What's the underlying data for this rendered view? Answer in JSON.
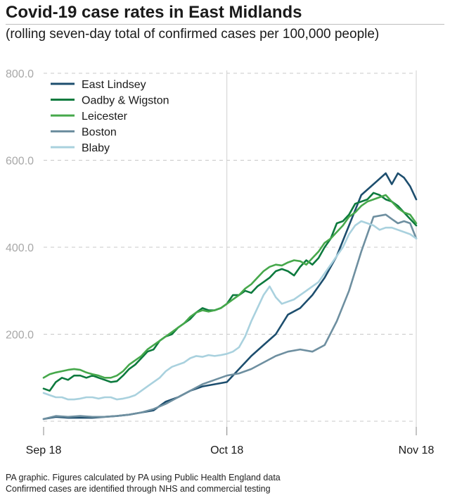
{
  "chart_data": {
    "type": "line",
    "title": "Covid-19 case rates in East Midlands",
    "subtitle": "(rolling seven-day total of confirmed cases per 100,000 people)",
    "ylim": [
      0,
      800
    ],
    "xlim": [
      0,
      61
    ],
    "y_ticks": [
      {
        "value": 200,
        "label": "200.0"
      },
      {
        "value": 400,
        "label": "400.0"
      },
      {
        "value": 600,
        "label": "600.0"
      },
      {
        "value": 800,
        "label": "800.0"
      }
    ],
    "x_ticks": [
      {
        "value": 0,
        "label": "Sep 18"
      },
      {
        "value": 30,
        "label": "Oct 18"
      },
      {
        "value": 61,
        "label": "Nov 18"
      }
    ],
    "grid": true,
    "legend_position": "top-left",
    "series": [
      {
        "name": "East Lindsey",
        "color": "#1d4e6e",
        "x": [
          0,
          2,
          4,
          6,
          8,
          10,
          12,
          14,
          16,
          18,
          20,
          22,
          24,
          26,
          28,
          30,
          32,
          34,
          36,
          38,
          40,
          42,
          44,
          46,
          48,
          50,
          52,
          54,
          56,
          57,
          58,
          59,
          60,
          61
        ],
        "values": [
          5,
          10,
          8,
          8,
          8,
          10,
          12,
          15,
          20,
          25,
          45,
          55,
          70,
          80,
          85,
          90,
          120,
          150,
          175,
          200,
          245,
          260,
          290,
          330,
          380,
          450,
          520,
          545,
          570,
          545,
          570,
          560,
          540,
          510
        ]
      },
      {
        "name": "Oadby & Wigston",
        "color": "#0d7a3e",
        "x": [
          0,
          1,
          2,
          3,
          4,
          5,
          6,
          7,
          8,
          9,
          10,
          11,
          12,
          13,
          14,
          15,
          16,
          17,
          18,
          19,
          20,
          21,
          22,
          23,
          24,
          25,
          26,
          27,
          28,
          29,
          30,
          31,
          32,
          33,
          34,
          35,
          36,
          37,
          38,
          39,
          40,
          41,
          42,
          43,
          44,
          45,
          46,
          47,
          48,
          49,
          50,
          51,
          52,
          53,
          54,
          55,
          56,
          57,
          58,
          59,
          60,
          61
        ],
        "values": [
          75,
          70,
          90,
          100,
          95,
          105,
          105,
          100,
          105,
          100,
          95,
          90,
          92,
          105,
          120,
          130,
          145,
          160,
          165,
          185,
          195,
          200,
          215,
          225,
          235,
          250,
          260,
          255,
          255,
          260,
          270,
          290,
          290,
          300,
          295,
          310,
          320,
          330,
          345,
          350,
          345,
          335,
          355,
          370,
          360,
          375,
          400,
          420,
          455,
          460,
          475,
          500,
          505,
          510,
          525,
          520,
          510,
          505,
          495,
          480,
          465,
          450
        ]
      },
      {
        "name": "Leicester",
        "color": "#46a84b",
        "x": [
          0,
          1,
          2,
          3,
          4,
          5,
          6,
          7,
          8,
          9,
          10,
          11,
          12,
          13,
          14,
          15,
          16,
          17,
          18,
          19,
          20,
          21,
          22,
          23,
          24,
          25,
          26,
          27,
          28,
          29,
          30,
          31,
          32,
          33,
          34,
          35,
          36,
          37,
          38,
          39,
          40,
          41,
          42,
          43,
          44,
          45,
          46,
          47,
          48,
          49,
          50,
          51,
          52,
          53,
          54,
          55,
          56,
          57,
          58,
          59,
          60,
          61
        ],
        "values": [
          100,
          108,
          112,
          115,
          118,
          120,
          118,
          112,
          108,
          105,
          100,
          100,
          105,
          115,
          130,
          140,
          150,
          165,
          175,
          185,
          195,
          205,
          215,
          225,
          240,
          250,
          255,
          252,
          255,
          260,
          270,
          280,
          290,
          305,
          315,
          330,
          345,
          355,
          360,
          358,
          365,
          370,
          368,
          360,
          375,
          390,
          410,
          420,
          435,
          450,
          470,
          480,
          495,
          505,
          510,
          515,
          520,
          505,
          490,
          480,
          475,
          455
        ]
      },
      {
        "name": "Boston",
        "color": "#6e8fa0",
        "x": [
          0,
          2,
          4,
          6,
          8,
          10,
          12,
          14,
          16,
          18,
          20,
          22,
          24,
          26,
          28,
          30,
          32,
          34,
          36,
          38,
          40,
          42,
          44,
          46,
          48,
          50,
          52,
          54,
          56,
          57,
          58,
          59,
          60,
          61
        ],
        "values": [
          5,
          12,
          10,
          12,
          10,
          10,
          12,
          15,
          20,
          28,
          40,
          55,
          70,
          85,
          95,
          105,
          110,
          120,
          135,
          150,
          160,
          165,
          160,
          175,
          230,
          300,
          390,
          470,
          475,
          465,
          455,
          460,
          455,
          420
        ]
      },
      {
        "name": "Blaby",
        "color": "#a9d1de",
        "x": [
          0,
          1,
          2,
          3,
          4,
          5,
          6,
          7,
          8,
          9,
          10,
          11,
          12,
          13,
          14,
          15,
          16,
          17,
          18,
          19,
          20,
          21,
          22,
          23,
          24,
          25,
          26,
          27,
          28,
          29,
          30,
          31,
          32,
          33,
          34,
          35,
          36,
          37,
          38,
          39,
          40,
          41,
          42,
          43,
          44,
          45,
          46,
          47,
          48,
          49,
          50,
          51,
          52,
          53,
          54,
          55,
          56,
          57,
          58,
          59,
          60,
          61
        ],
        "values": [
          65,
          60,
          55,
          55,
          50,
          50,
          52,
          55,
          55,
          52,
          55,
          55,
          50,
          52,
          55,
          60,
          70,
          80,
          90,
          100,
          115,
          125,
          130,
          135,
          145,
          150,
          148,
          152,
          150,
          152,
          155,
          160,
          170,
          195,
          230,
          260,
          290,
          310,
          285,
          270,
          275,
          280,
          290,
          300,
          310,
          320,
          340,
          360,
          380,
          400,
          430,
          450,
          460,
          455,
          450,
          440,
          445,
          445,
          440,
          435,
          430,
          420
        ]
      }
    ]
  },
  "footer": {
    "line1": "PA graphic. Figures calculated by PA using Public Health England data",
    "line2": "Confirmed cases are identified through NHS and commercial testing"
  }
}
